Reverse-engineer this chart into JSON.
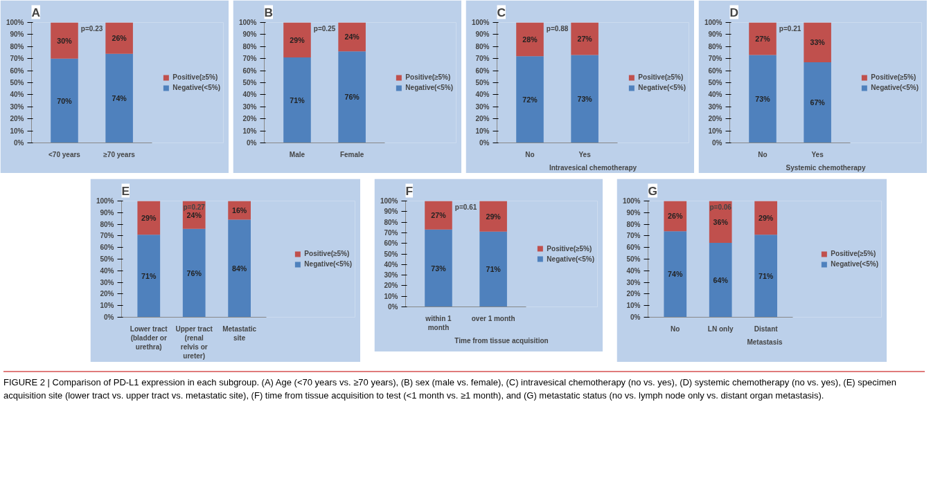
{
  "chart_data": [
    {
      "type": "bar",
      "stacked": true,
      "title": "A",
      "categories": [
        "<70 years",
        "≥70 years"
      ],
      "series": [
        {
          "name": "Negative(<5%)",
          "color": "#4f81bd",
          "values": [
            70,
            74
          ],
          "value_labels": [
            "70%",
            "74%"
          ]
        },
        {
          "name": "Positive(≥5%)",
          "color": "#c0504d",
          "values": [
            30,
            26
          ],
          "value_labels": [
            "30%",
            "26%"
          ]
        }
      ],
      "ylim": [
        0,
        100
      ],
      "yticks": [
        {
          "value": 0,
          "label": "0%"
        },
        {
          "value": 10,
          "label": "10%"
        },
        {
          "value": 20,
          "label": "20%"
        },
        {
          "value": 30,
          "label": "30%"
        },
        {
          "value": 40,
          "label": "40%"
        },
        {
          "value": 50,
          "label": "50%"
        },
        {
          "value": 60,
          "label": "60%"
        },
        {
          "value": 70,
          "label": "70%"
        },
        {
          "value": 80,
          "label": "80%"
        },
        {
          "value": 90,
          "label": "90%"
        },
        {
          "value": 100,
          "label": "100%"
        }
      ],
      "legend": "right",
      "annotations": [
        "p=0.23"
      ]
    },
    {
      "type": "bar",
      "stacked": true,
      "title": "B",
      "categories": [
        "Male",
        "Female"
      ],
      "series": [
        {
          "name": "Negative(<5%)",
          "color": "#4f81bd",
          "values": [
            71,
            76
          ],
          "value_labels": [
            "71%",
            "76%"
          ]
        },
        {
          "name": "Positive(≥5%)",
          "color": "#c0504d",
          "values": [
            29,
            24
          ],
          "value_labels": [
            "29%",
            "24%"
          ]
        }
      ],
      "ylim": [
        0,
        100
      ],
      "yticks": [
        {
          "value": 0,
          "label": "0%"
        },
        {
          "value": 10,
          "label": "10%"
        },
        {
          "value": 20,
          "label": "20%"
        },
        {
          "value": 30,
          "label": "30%"
        },
        {
          "value": 40,
          "label": "40%"
        },
        {
          "value": 50,
          "label": "50%"
        },
        {
          "value": 60,
          "label": "60%"
        },
        {
          "value": 70,
          "label": "70%"
        },
        {
          "value": 80,
          "label": "80%"
        },
        {
          "value": 90,
          "label": "90%"
        },
        {
          "value": 100,
          "label": "100%"
        }
      ],
      "legend": "right",
      "annotations": [
        "p=0.25"
      ]
    },
    {
      "type": "bar",
      "stacked": true,
      "title": "C",
      "xlabel": "Intravesical chemotherapy",
      "categories": [
        "No",
        "Yes"
      ],
      "series": [
        {
          "name": "Negative(<5%)",
          "color": "#4f81bd",
          "values": [
            72,
            73
          ],
          "value_labels": [
            "72%",
            "73%"
          ]
        },
        {
          "name": "Positive(≥5%)",
          "color": "#c0504d",
          "values": [
            28,
            27
          ],
          "value_labels": [
            "28%",
            "27%"
          ]
        }
      ],
      "ylim": [
        0,
        100
      ],
      "yticks": [
        {
          "value": 0,
          "label": "0%"
        },
        {
          "value": 10,
          "label": "10%"
        },
        {
          "value": 20,
          "label": "20%"
        },
        {
          "value": 30,
          "label": "30%"
        },
        {
          "value": 40,
          "label": "40%"
        },
        {
          "value": 50,
          "label": "50%"
        },
        {
          "value": 60,
          "label": "60%"
        },
        {
          "value": 70,
          "label": "70%"
        },
        {
          "value": 80,
          "label": "80%"
        },
        {
          "value": 90,
          "label": "90%"
        },
        {
          "value": 100,
          "label": "100%"
        }
      ],
      "legend": "right",
      "annotations": [
        "p=0.88"
      ]
    },
    {
      "type": "bar",
      "stacked": true,
      "title": "D",
      "xlabel": "Systemic chemotherapy",
      "categories": [
        "No",
        "Yes"
      ],
      "series": [
        {
          "name": "Negative(<5%)",
          "color": "#4f81bd",
          "values": [
            73,
            67
          ],
          "value_labels": [
            "73%",
            "67%"
          ]
        },
        {
          "name": "Positive(≥5%)",
          "color": "#c0504d",
          "values": [
            27,
            33
          ],
          "value_labels": [
            "27%",
            "33%"
          ]
        }
      ],
      "ylim": [
        0,
        100
      ],
      "yticks": [
        {
          "value": 0,
          "label": "0%"
        },
        {
          "value": 10,
          "label": "10%"
        },
        {
          "value": 20,
          "label": "20%"
        },
        {
          "value": 30,
          "label": "30%"
        },
        {
          "value": 40,
          "label": "40%"
        },
        {
          "value": 50,
          "label": "50%"
        },
        {
          "value": 60,
          "label": "60%"
        },
        {
          "value": 70,
          "label": "70%"
        },
        {
          "value": 80,
          "label": "80%"
        },
        {
          "value": 90,
          "label": "90%"
        },
        {
          "value": 100,
          "label": "100%"
        }
      ],
      "legend": "right",
      "annotations": [
        "p=0.21"
      ]
    },
    {
      "type": "bar",
      "stacked": true,
      "title": "E",
      "categories": [
        "Lower tract (bladder or urethra)",
        "Upper tract (renal relvis or ureter)",
        "Metastatic site"
      ],
      "series": [
        {
          "name": "Negative(<5%)",
          "color": "#4f81bd",
          "values": [
            71,
            76,
            84
          ],
          "value_labels": [
            "71%",
            "76%",
            "84%"
          ]
        },
        {
          "name": "Positive(≥5%)",
          "color": "#c0504d",
          "values": [
            29,
            24,
            16
          ],
          "value_labels": [
            "29%",
            "24%",
            "16%"
          ]
        }
      ],
      "ylim": [
        0,
        100
      ],
      "yticks": [
        {
          "value": 0,
          "label": "0%"
        },
        {
          "value": 10,
          "label": "10%"
        },
        {
          "value": 20,
          "label": "20%"
        },
        {
          "value": 30,
          "label": "30%"
        },
        {
          "value": 40,
          "label": "40%"
        },
        {
          "value": 50,
          "label": "50%"
        },
        {
          "value": 60,
          "label": "60%"
        },
        {
          "value": 70,
          "label": "70%"
        },
        {
          "value": 80,
          "label": "80%"
        },
        {
          "value": 90,
          "label": "90%"
        },
        {
          "value": 100,
          "label": "100%"
        }
      ],
      "legend": "right",
      "annotations": [
        "p=0.27"
      ]
    },
    {
      "type": "bar",
      "stacked": true,
      "title": "F",
      "xlabel": "Time from tissue acquisition",
      "categories": [
        "within 1 month",
        "over 1 month"
      ],
      "series": [
        {
          "name": "Negative(<5%)",
          "color": "#4f81bd",
          "values": [
            73,
            71
          ],
          "value_labels": [
            "73%",
            "71%"
          ]
        },
        {
          "name": "Positive(≥5%)",
          "color": "#c0504d",
          "values": [
            27,
            29
          ],
          "value_labels": [
            "27%",
            "29%"
          ]
        }
      ],
      "ylim": [
        0,
        100
      ],
      "yticks": [
        {
          "value": 0,
          "label": "0%"
        },
        {
          "value": 10,
          "label": "10%"
        },
        {
          "value": 20,
          "label": "20%"
        },
        {
          "value": 30,
          "label": "30%"
        },
        {
          "value": 40,
          "label": "40%"
        },
        {
          "value": 50,
          "label": "50%"
        },
        {
          "value": 60,
          "label": "60%"
        },
        {
          "value": 70,
          "label": "70%"
        },
        {
          "value": 80,
          "label": "80%"
        },
        {
          "value": 90,
          "label": "90%"
        },
        {
          "value": 100,
          "label": "100%"
        }
      ],
      "legend": "right",
      "annotations": [
        "p=0.61"
      ]
    },
    {
      "type": "bar",
      "stacked": true,
      "title": "G",
      "xlabel": "Metastasis",
      "categories": [
        "No",
        "LN only",
        "Distant"
      ],
      "series": [
        {
          "name": "Negative(<5%)",
          "color": "#4f81bd",
          "values": [
            74,
            64,
            71
          ],
          "value_labels": [
            "74%",
            "64%",
            "71%"
          ]
        },
        {
          "name": "Positive(≥5%)",
          "color": "#c0504d",
          "values": [
            26,
            36,
            29
          ],
          "value_labels": [
            "26%",
            "36%",
            "29%"
          ]
        }
      ],
      "ylim": [
        0,
        100
      ],
      "yticks": [
        {
          "value": 0,
          "label": "0%"
        },
        {
          "value": 10,
          "label": "10%"
        },
        {
          "value": 20,
          "label": "20%"
        },
        {
          "value": 30,
          "label": "30%"
        },
        {
          "value": 40,
          "label": "40%"
        },
        {
          "value": 50,
          "label": "50%"
        },
        {
          "value": 60,
          "label": "60%"
        },
        {
          "value": 70,
          "label": "70%"
        },
        {
          "value": 80,
          "label": "80%"
        },
        {
          "value": 90,
          "label": "90%"
        },
        {
          "value": 100,
          "label": "100%"
        }
      ],
      "legend": "right",
      "annotations": [
        "p=0.06",
        "FIGURE 2 | Comparison of PD-L1 expression in each subgroup. (A) Age (<70 years vs. ≥70 years), (B) sex (male vs. female), (C) intravesical chemotherapy (no vs. yes), (D) systemic chemotherapy (no vs. yes), (E) specimen acquisition site (lower tract vs. upper tract vs. metastatic site), (F) time from tissue acquisition to test (<1 month vs. ≥1 month), and (G) metastatic status (no vs. lymph node only vs. distant organ metastasis)."
      ]
    }
  ]
}
